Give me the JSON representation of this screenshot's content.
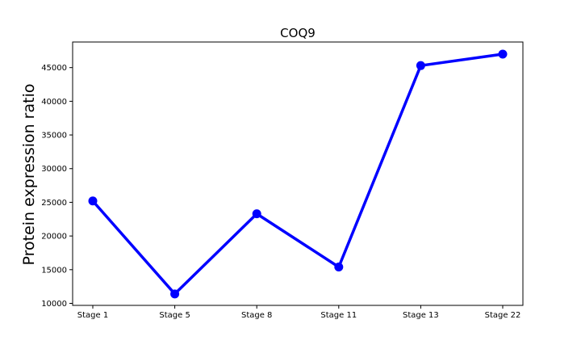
{
  "chart_data": {
    "type": "line",
    "title": "COQ9",
    "xlabel": "",
    "ylabel": "Protein expression ratio",
    "categories": [
      "Stage 1",
      "Stage 5",
      "Stage 8",
      "Stage 11",
      "Stage 13",
      "Stage 22"
    ],
    "series": [
      {
        "values": [
          25200,
          11400,
          23300,
          15400,
          45300,
          47000
        ],
        "color": "#0000ff"
      }
    ],
    "yticks": [
      10000,
      15000,
      20000,
      25000,
      30000,
      35000,
      40000,
      45000
    ],
    "ylim": [
      9700,
      48800
    ],
    "grid": false,
    "legend": "none"
  }
}
